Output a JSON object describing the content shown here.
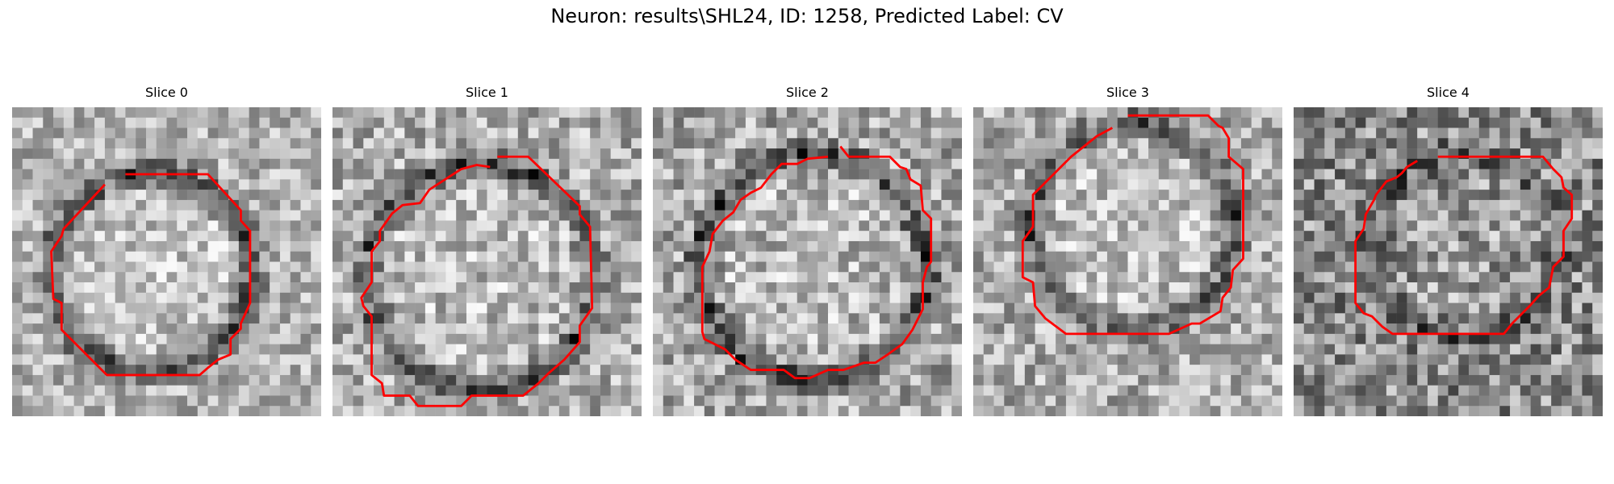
{
  "figure": {
    "title": "Neuron: results\\SHL24, ID: 1258, Predicted Label: CV",
    "contour_color": "#ff0000",
    "colormap": "gray"
  },
  "panels": [
    {
      "title": "Slice 0",
      "seed": 11,
      "brightness": 0.7,
      "contrast": 0.22,
      "ring_darkness": 0.42
    },
    {
      "title": "Slice 1",
      "seed": 23,
      "brightness": 0.68,
      "contrast": 0.25,
      "ring_darkness": 0.38
    },
    {
      "title": "Slice 2",
      "seed": 37,
      "brightness": 0.66,
      "contrast": 0.26,
      "ring_darkness": 0.4
    },
    {
      "title": "Slice 3",
      "seed": 41,
      "brightness": 0.68,
      "contrast": 0.24,
      "ring_darkness": 0.34
    },
    {
      "title": "Slice 4",
      "seed": 53,
      "brightness": 0.55,
      "contrast": 0.3,
      "ring_darkness": 0.22
    }
  ]
}
